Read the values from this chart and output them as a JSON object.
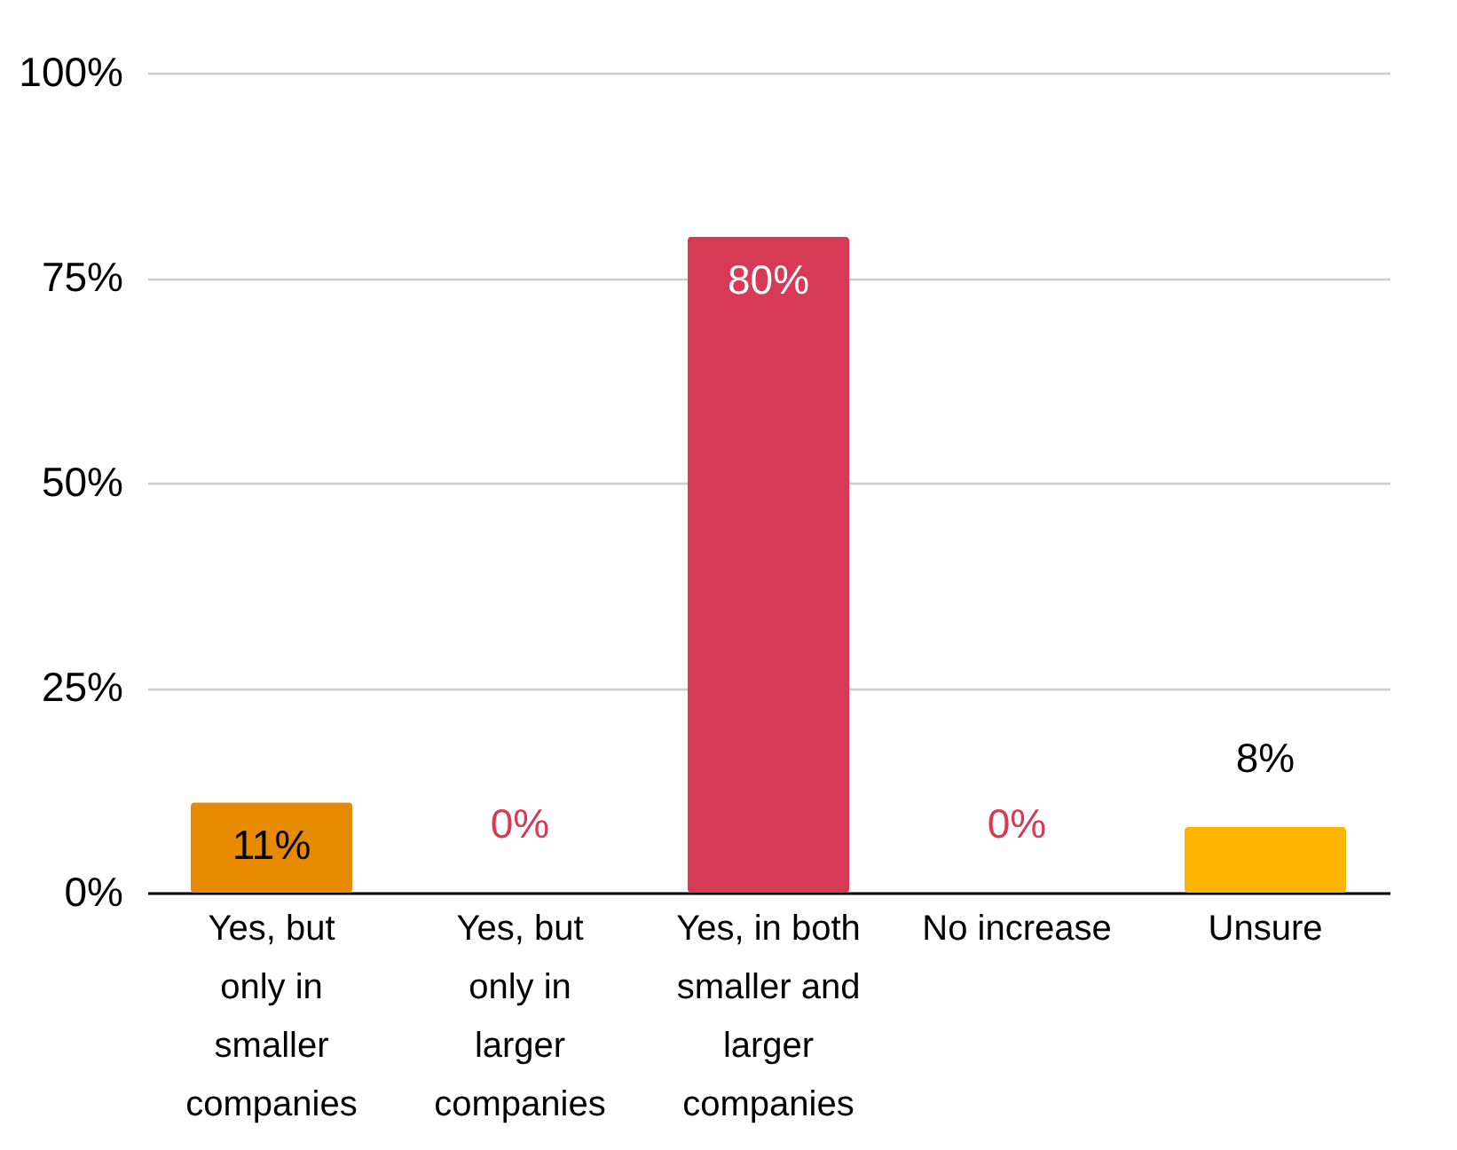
{
  "chart_data": {
    "type": "bar",
    "categories": [
      "Yes, but only in smaller companies",
      "Yes, but only in larger companies",
      "Yes, in both smaller and larger companies",
      "No increase",
      "Unsure"
    ],
    "values": [
      11,
      0,
      80,
      0,
      8
    ],
    "colors": [
      "#e68a00",
      "#d63a55",
      "#d63a55",
      "#d63a55",
      "#fbb500"
    ],
    "ylim": [
      0,
      100
    ],
    "yticks": [
      {
        "value": 0,
        "label": "0%"
      },
      {
        "value": 25,
        "label": "25%"
      },
      {
        "value": 50,
        "label": "50%"
      },
      {
        "value": 75,
        "label": "75%"
      },
      {
        "value": 100,
        "label": "100%"
      }
    ],
    "grid": "y",
    "value_labels": [
      "11%",
      "0%",
      "80%",
      "0%",
      "8%"
    ]
  }
}
